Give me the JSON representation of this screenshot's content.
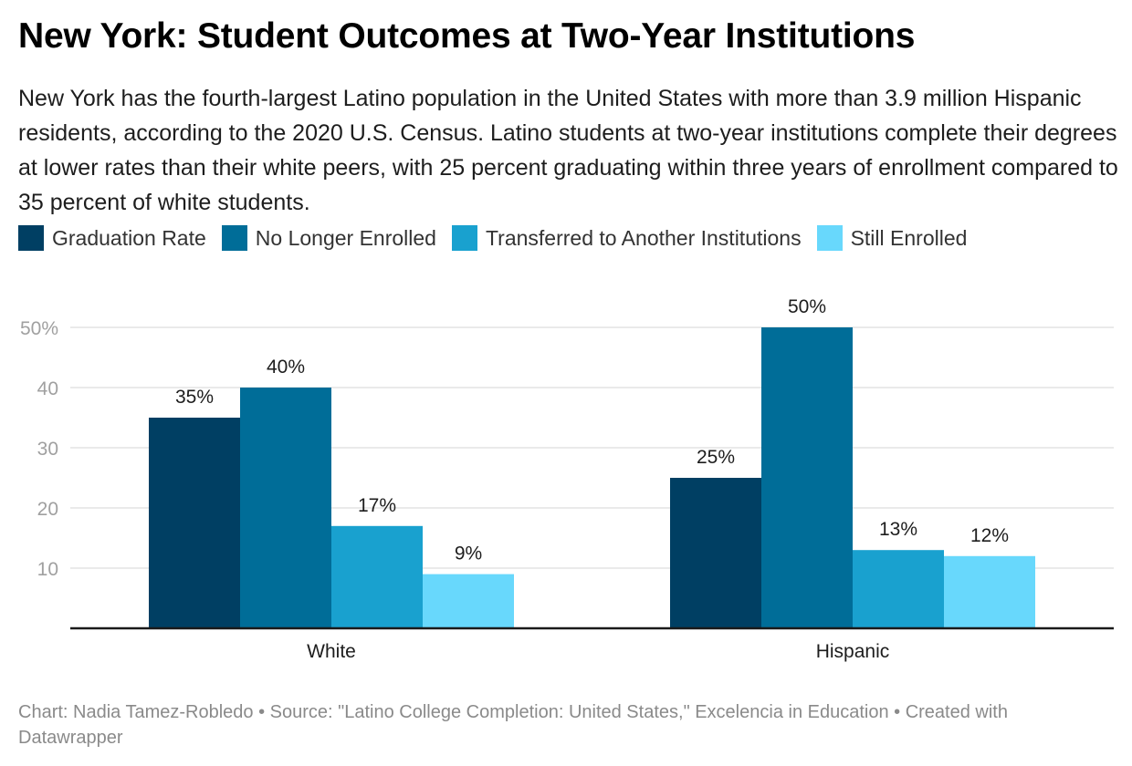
{
  "header": {
    "title": "New York: Student Outcomes at Two-Year Institutions",
    "subtitle": "New York has the fourth-largest Latino population in the United States with more than 3.9 million Hispanic residents, according to the 2020 U.S. Census. Latino students at two-year institutions complete their degrees at lower rates than their white peers, with 25 percent graduating within three years of enrollment compared to 35 percent of white students."
  },
  "footer": {
    "text": "Chart: Nadia Tamez-Robledo • Source: \"Latino College Completion: United States,\" Excelencia in Education • Created with Datawrapper"
  },
  "chart_data": {
    "type": "bar",
    "title": "New York: Student Outcomes at Two-Year Institutions",
    "xlabel": "",
    "ylabel": "",
    "categories": [
      "White",
      "Hispanic"
    ],
    "series": [
      {
        "name": "Graduation Rate",
        "color": "#003f63",
        "values": [
          35,
          25
        ]
      },
      {
        "name": "No Longer Enrolled",
        "color": "#006d98",
        "values": [
          40,
          50
        ]
      },
      {
        "name": "Transferred to Another Institutions",
        "color": "#19a1cf",
        "values": [
          17,
          13
        ]
      },
      {
        "name": "Still Enrolled",
        "color": "#68d8fc",
        "values": [
          9,
          12
        ]
      }
    ],
    "value_labels": [
      [
        "35%",
        "25%"
      ],
      [
        "40%",
        "50%"
      ],
      [
        "17%",
        "13%"
      ],
      [
        "9%",
        "12%"
      ]
    ],
    "yticks": [
      10,
      20,
      30,
      40,
      50
    ],
    "ytick_labels": [
      "10",
      "20",
      "30",
      "40",
      "50%"
    ],
    "ylim": [
      0,
      50
    ],
    "grid": true,
    "legend": "top-left"
  }
}
